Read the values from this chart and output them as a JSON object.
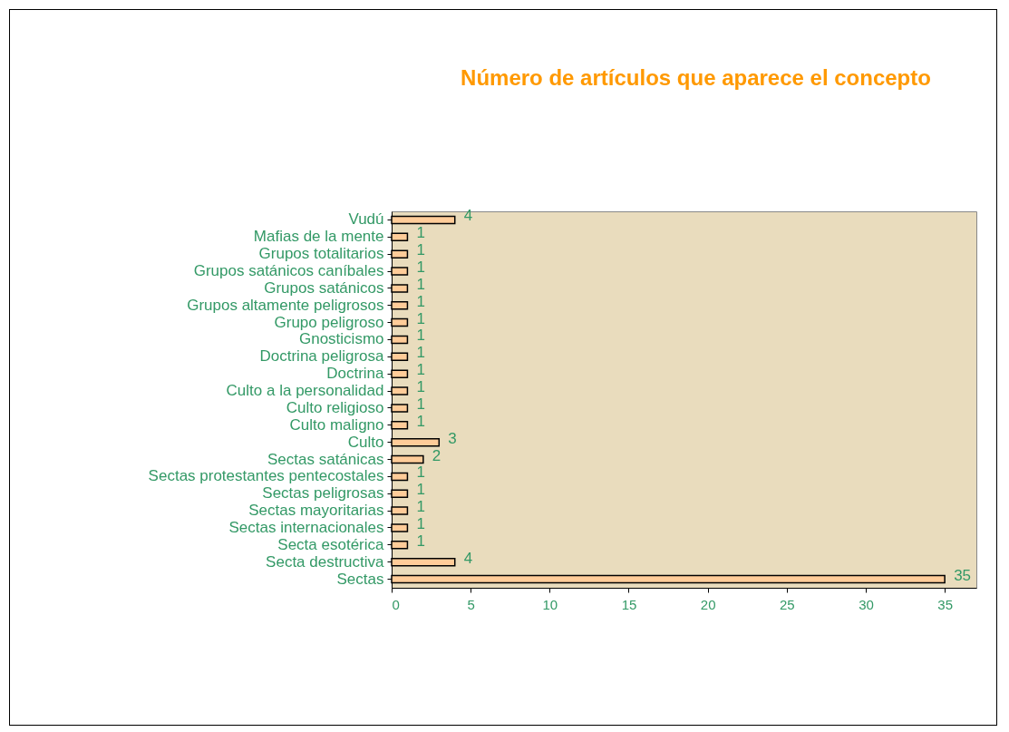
{
  "chart_data": {
    "type": "bar",
    "orientation": "horizontal",
    "title": "Número de artículos que aparece el concepto",
    "categories": [
      "Vudú",
      "Mafias de la mente",
      "Grupos totalitarios",
      "Grupos satánicos caníbales",
      "Grupos satánicos",
      "Grupos altamente peligrosos",
      "Grupo peligroso",
      "Gnosticismo",
      "Doctrina peligrosa",
      "Doctrina",
      "Culto a la personalidad",
      "Culto religioso",
      "Culto maligno",
      "Culto",
      "Sectas satánicas",
      "Sectas protestantes pentecostales",
      "Sectas peligrosas",
      "Sectas mayoritarias",
      "Sectas internacionales",
      "Secta esotérica",
      "Secta destructiva",
      "Sectas"
    ],
    "values": [
      4,
      1,
      1,
      1,
      1,
      1,
      1,
      1,
      1,
      1,
      1,
      1,
      1,
      3,
      2,
      1,
      1,
      1,
      1,
      1,
      4,
      35
    ],
    "color": "#ffcc99",
    "xlim": [
      0,
      37
    ],
    "xticks": [
      0,
      5,
      10,
      15,
      20,
      25,
      30,
      35
    ],
    "data_labels": true,
    "grid": false
  }
}
